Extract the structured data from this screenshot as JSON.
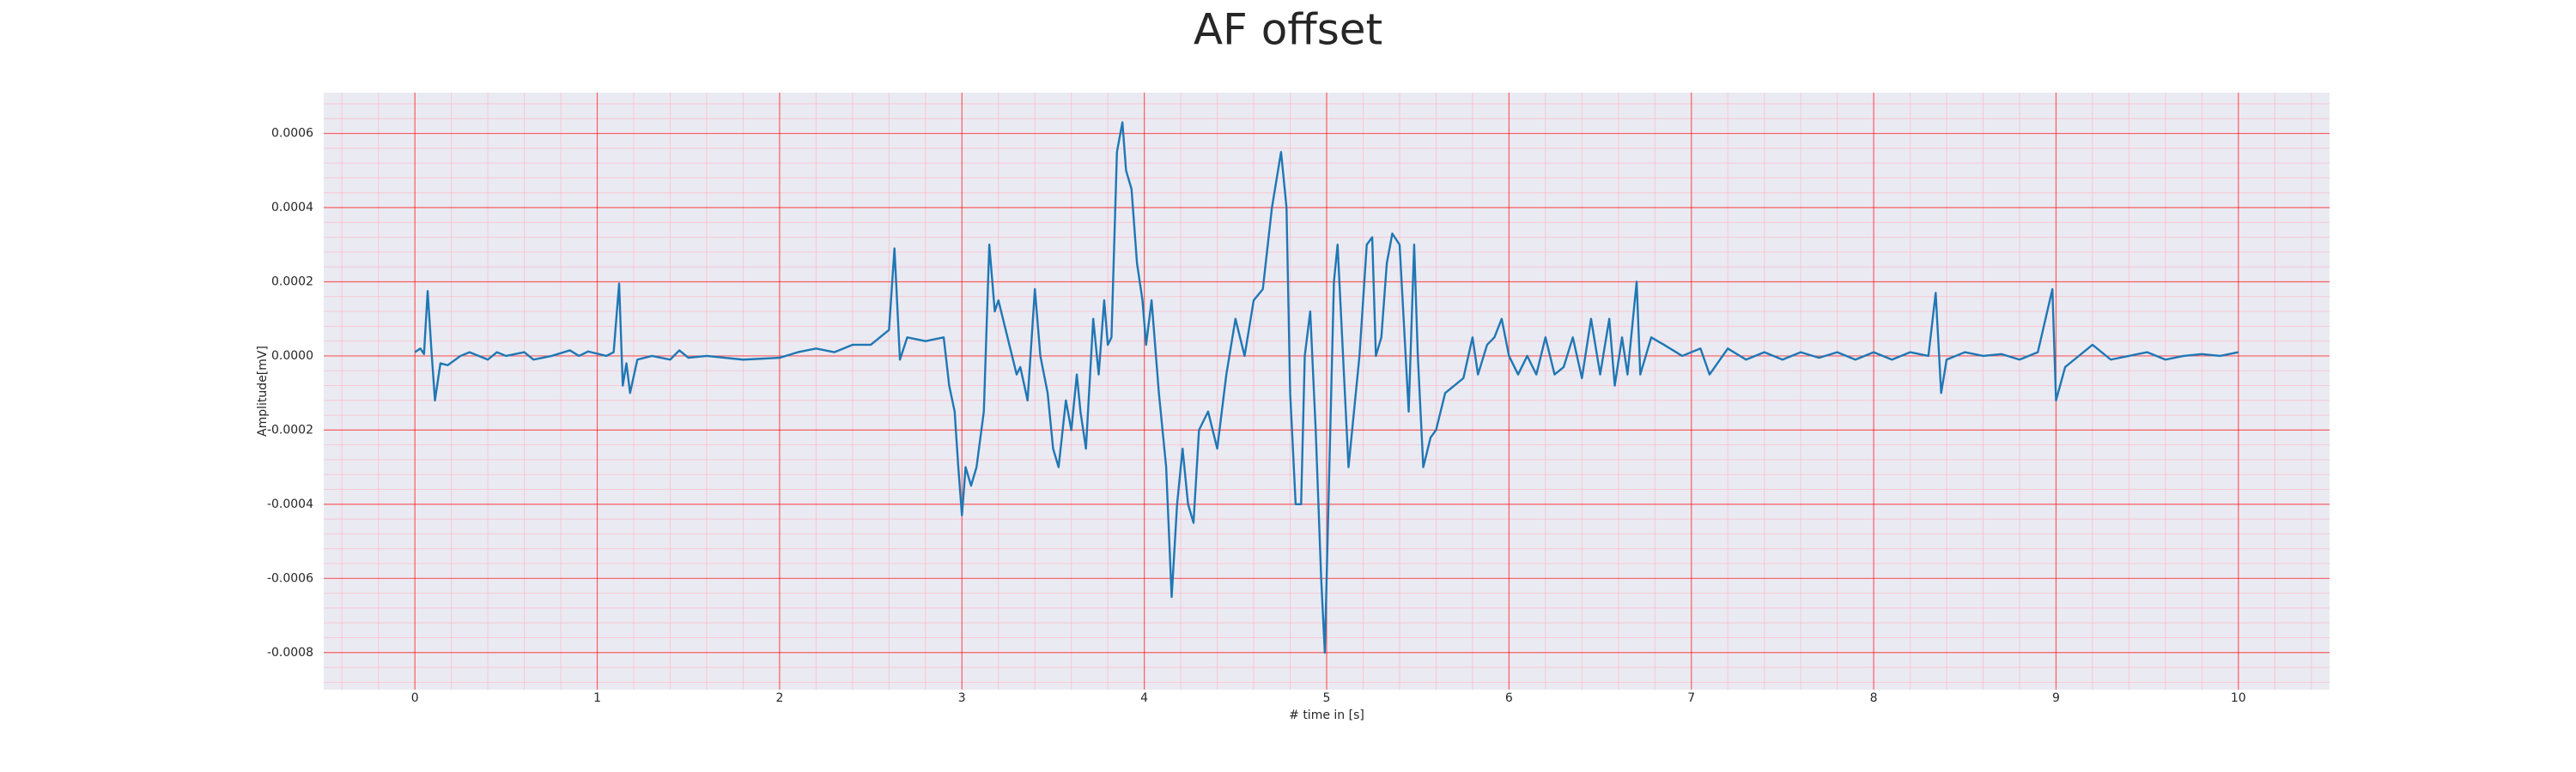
{
  "chart_data": {
    "type": "line",
    "title": "AF offset",
    "xlabel": "# time in [s]",
    "ylabel": "Amplitude[mV]",
    "x": [
      0,
      0.03,
      0.05,
      0.07,
      0.09,
      0.11,
      0.14,
      0.18,
      0.25,
      0.3,
      0.4,
      0.45,
      0.5,
      0.6,
      0.65,
      0.75,
      0.85,
      0.9,
      0.95,
      1.05,
      1.09,
      1.12,
      1.14,
      1.16,
      1.18,
      1.22,
      1.3,
      1.4,
      1.45,
      1.5,
      1.6,
      1.8,
      2.0,
      2.1,
      2.2,
      2.3,
      2.4,
      2.5,
      2.55,
      2.6,
      2.63,
      2.66,
      2.7,
      2.8,
      2.9,
      2.93,
      2.96,
      2.98,
      3.0,
      3.02,
      3.05,
      3.08,
      3.12,
      3.15,
      3.18,
      3.2,
      3.25,
      3.3,
      3.32,
      3.36,
      3.4,
      3.43,
      3.47,
      3.5,
      3.53,
      3.57,
      3.6,
      3.63,
      3.65,
      3.68,
      3.72,
      3.75,
      3.78,
      3.8,
      3.82,
      3.85,
      3.88,
      3.9,
      3.93,
      3.96,
      3.99,
      4.01,
      4.04,
      4.08,
      4.12,
      4.15,
      4.18,
      4.21,
      4.24,
      4.27,
      4.3,
      4.35,
      4.4,
      4.45,
      4.5,
      4.55,
      4.6,
      4.65,
      4.7,
      4.75,
      4.78,
      4.8,
      4.83,
      4.86,
      4.88,
      4.91,
      4.94,
      4.97,
      4.99,
      5.01,
      5.04,
      5.06,
      5.09,
      5.12,
      5.15,
      5.18,
      5.22,
      5.25,
      5.27,
      5.3,
      5.33,
      5.36,
      5.4,
      5.45,
      5.48,
      5.5,
      5.53,
      5.57,
      5.6,
      5.65,
      5.7,
      5.75,
      5.8,
      5.83,
      5.88,
      5.92,
      5.96,
      6.0,
      6.05,
      6.1,
      6.15,
      6.2,
      6.25,
      6.3,
      6.35,
      6.4,
      6.45,
      6.5,
      6.55,
      6.58,
      6.62,
      6.65,
      6.7,
      6.72,
      6.78,
      6.85,
      6.95,
      7.05,
      7.1,
      7.2,
      7.3,
      7.4,
      7.5,
      7.6,
      7.7,
      7.8,
      7.9,
      8.0,
      8.1,
      8.2,
      8.3,
      8.34,
      8.37,
      8.4,
      8.5,
      8.6,
      8.7,
      8.8,
      8.9,
      8.98,
      9.0,
      9.05,
      9.1,
      9.2,
      9.3,
      9.4,
      9.5,
      9.6,
      9.7,
      9.8,
      9.9,
      10.0
    ],
    "series": [
      {
        "color": "#1f77b4",
        "values": [
          1e-05,
          2e-05,
          5e-06,
          0.000175,
          2e-05,
          -0.00012,
          -2e-05,
          -2.5e-05,
          0.0,
          1e-05,
          -1e-05,
          1e-05,
          0.0,
          1e-05,
          -1e-05,
          0.0,
          1.5e-05,
          0.0,
          1.2e-05,
          0.0,
          1e-05,
          0.000195,
          -8e-05,
          -2e-05,
          -0.0001,
          -1e-05,
          0.0,
          -1e-05,
          1.5e-05,
          -5e-06,
          0.0,
          -1e-05,
          -5e-06,
          1e-05,
          2e-05,
          1e-05,
          3e-05,
          3e-05,
          5e-05,
          7e-05,
          0.00029,
          -1e-05,
          5e-05,
          4e-05,
          5e-05,
          -8e-05,
          -0.00015,
          -0.0003,
          -0.00043,
          -0.0003,
          -0.00035,
          -0.0003,
          -0.00015,
          0.0003,
          0.00012,
          0.00015,
          5e-05,
          -5e-05,
          -3e-05,
          -0.00012,
          0.00018,
          0.0,
          -0.0001,
          -0.00025,
          -0.0003,
          -0.00012,
          -0.0002,
          -5e-05,
          -0.00015,
          -0.00025,
          0.0001,
          -5e-05,
          0.00015,
          3e-05,
          5e-05,
          0.00055,
          0.00063,
          0.0005,
          0.00045,
          0.00025,
          0.00015,
          3e-05,
          0.00015,
          -0.0001,
          -0.0003,
          -0.00065,
          -0.0004,
          -0.00025,
          -0.0004,
          -0.00045,
          -0.0002,
          -0.00015,
          -0.00025,
          -5e-05,
          0.0001,
          0.0,
          0.00015,
          0.00018,
          0.0004,
          0.00055,
          0.0004,
          -0.0001,
          -0.0004,
          -0.0004,
          0.0,
          0.00012,
          -0.0002,
          -0.0006,
          -0.0008,
          -0.0004,
          0.0002,
          0.0003,
          0.0,
          -0.0003,
          -0.00015,
          0.0,
          0.0003,
          0.00032,
          0.0,
          5e-05,
          0.00025,
          0.00033,
          0.0003,
          -0.00015,
          0.0003,
          0.0,
          -0.0003,
          -0.00022,
          -0.0002,
          -0.0001,
          -8e-05,
          -6e-05,
          5e-05,
          -5e-05,
          3e-05,
          5e-05,
          0.0001,
          0.0,
          -5e-05,
          0.0,
          -5e-05,
          5e-05,
          -5e-05,
          -3e-05,
          5e-05,
          -6e-05,
          0.0001,
          -5e-05,
          0.0001,
          -8e-05,
          5e-05,
          -5e-05,
          0.0002,
          -5e-05,
          5e-05,
          3e-05,
          0.0,
          2e-05,
          -5e-05,
          2e-05,
          -1e-05,
          1e-05,
          -1e-05,
          1e-05,
          -5e-06,
          1e-05,
          -1e-05,
          1e-05,
          -1e-05,
          1e-05,
          0.0,
          0.00017,
          -0.0001,
          -1e-05,
          1e-05,
          0.0,
          5e-06,
          -1e-05,
          1e-05,
          0.00018,
          -0.00012,
          -3e-05,
          -1e-05,
          3e-05,
          -1e-05,
          0.0,
          1e-05,
          -1e-05,
          0.0,
          5e-06,
          0.0,
          1e-05
        ]
      }
    ],
    "xlim": [
      -0.5,
      10.5
    ],
    "xticks": [
      0,
      1,
      2,
      3,
      4,
      5,
      6,
      7,
      8,
      9,
      10
    ],
    "ylim": [
      -0.0009,
      0.00071
    ],
    "yticks": [
      -0.0008,
      -0.0006,
      -0.0004,
      -0.0002,
      {
        "value": 0,
        "label": "0.0000"
      },
      0.0002,
      0.0004,
      0.0006
    ],
    "grid": true,
    "minor_grid": true,
    "grid_color": "#ff0000",
    "minor_grid_color": "#ffb0c0",
    "background": "#eaeaf2"
  }
}
